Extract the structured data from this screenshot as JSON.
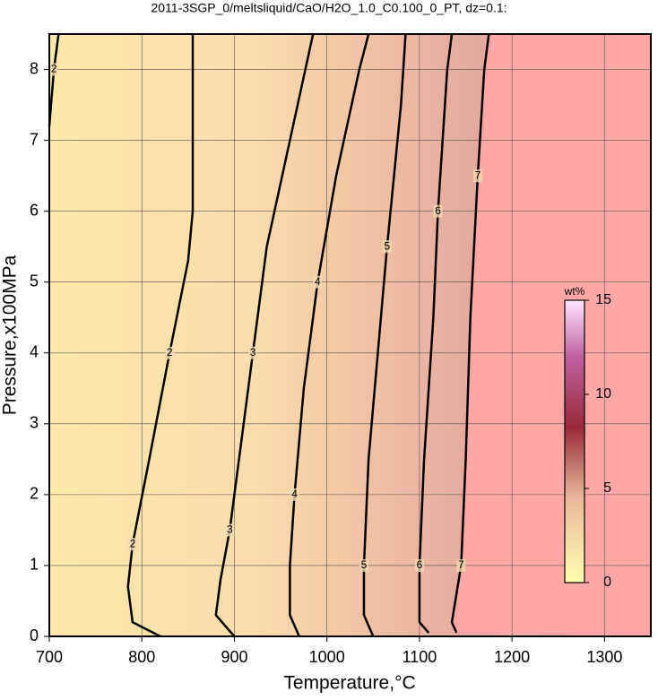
{
  "chart_data": {
    "type": "contour",
    "title": "2011-3SGP_0/meltsliquid/CaO/H2O_1.0_C0.100_0_PT, dz=0.1:",
    "x_label": "Temperature,°C",
    "y_label": "Pressure,x100MPa",
    "xlim": [
      700,
      1350
    ],
    "ylim": [
      0,
      8.5
    ],
    "xticks": [
      700,
      800,
      900,
      1000,
      1100,
      1200,
      1300
    ],
    "yticks": [
      0,
      1,
      2,
      3,
      4,
      5,
      6,
      7,
      8
    ],
    "grid": true,
    "contours": [
      {
        "level": 2,
        "x": [
          710,
          705,
          700
        ],
        "y": [
          8.5,
          8,
          7.2
        ]
      },
      {
        "level": 2,
        "x": [
          820,
          790,
          785,
          790,
          808,
          830,
          850,
          855,
          855
        ],
        "y": [
          0,
          0.2,
          0.7,
          1.3,
          2.5,
          4,
          5.3,
          6,
          8.5
        ]
      },
      {
        "level": 3,
        "x": [
          900,
          880,
          885,
          895,
          905,
          920,
          935,
          960,
          985
        ],
        "y": [
          0,
          0.3,
          0.8,
          1.5,
          2.5,
          4,
          5.5,
          7,
          8.5
        ]
      },
      {
        "level": 4,
        "x": [
          970,
          960,
          960,
          965,
          975,
          990,
          1010,
          1035,
          1045
        ],
        "y": [
          0,
          0.3,
          1,
          2,
          3.5,
          5,
          6.5,
          8,
          8.5
        ]
      },
      {
        "level": 5,
        "x": [
          1050,
          1040,
          1040,
          1045,
          1055,
          1065,
          1080,
          1085
        ],
        "y": [
          0,
          0.3,
          1,
          2.5,
          4,
          5.5,
          7.5,
          8.5
        ]
      },
      {
        "level": 6,
        "x": [
          1110,
          1100,
          1100,
          1105,
          1115,
          1120,
          1130,
          1135
        ],
        "y": [
          0.05,
          0.2,
          1,
          2.5,
          4.5,
          6,
          8,
          8.5
        ]
      },
      {
        "level": 7,
        "x": [
          1140,
          1135,
          1145,
          1150,
          1155,
          1163,
          1170,
          1175
        ],
        "y": [
          0.05,
          0.2,
          1,
          2.5,
          4.5,
          6.5,
          8,
          8.5
        ]
      }
    ],
    "colorbar": {
      "label": "wt%",
      "lim": [
        0,
        15
      ],
      "ticks": [
        0,
        5,
        10,
        15
      ]
    }
  }
}
